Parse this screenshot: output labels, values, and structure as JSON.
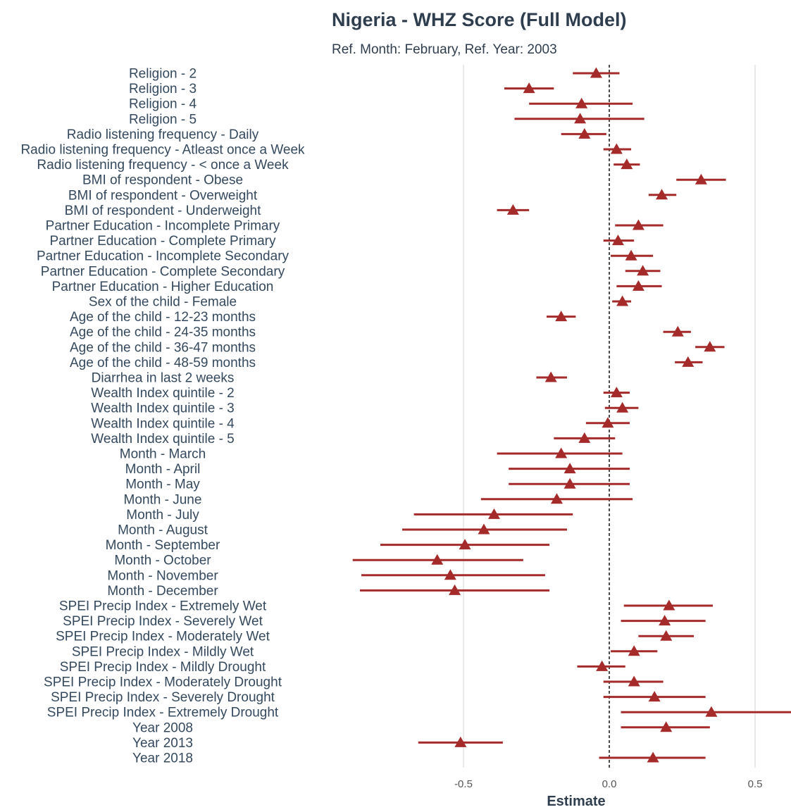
{
  "colors": {
    "series": "#a52a2a",
    "text": "#34495e",
    "grid": "#e3e3e3",
    "reference_line": "#111111"
  },
  "chart_data": {
    "type": "forest",
    "title": "Nigeria - WHZ Score (Full Model)",
    "subtitle": "Ref. Month: February, Ref. Year: 2003",
    "xlabel": "Estimate",
    "ylabel": "",
    "xlim": [
      -0.96,
      0.6
    ],
    "xticks": [
      -0.5,
      0.0,
      0.5
    ],
    "xtick_labels": [
      "-0.5",
      "0.0",
      "0.5"
    ],
    "reference_line": 0,
    "grid": "vertical major",
    "marker": "triangle",
    "rows": [
      {
        "label": "Religion - 2",
        "estimate": -0.045,
        "low": -0.125,
        "high": 0.035
      },
      {
        "label": "Religion - 3",
        "estimate": -0.275,
        "low": -0.36,
        "high": -0.19
      },
      {
        "label": "Religion - 4",
        "estimate": -0.095,
        "low": -0.275,
        "high": 0.08
      },
      {
        "label": "Religion - 5",
        "estimate": -0.1,
        "low": -0.325,
        "high": 0.12
      },
      {
        "label": "Radio listening frequency - Daily",
        "estimate": -0.085,
        "low": -0.165,
        "high": -0.01
      },
      {
        "label": "Radio listening frequency - Atleast once a Week",
        "estimate": 0.025,
        "low": -0.02,
        "high": 0.075
      },
      {
        "label": "Radio listening frequency - < once a Week",
        "estimate": 0.06,
        "low": 0.015,
        "high": 0.105
      },
      {
        "label": "BMI of respondent - Obese",
        "estimate": 0.315,
        "low": 0.23,
        "high": 0.4
      },
      {
        "label": "BMI of respondent - Overweight",
        "estimate": 0.18,
        "low": 0.135,
        "high": 0.23
      },
      {
        "label": "BMI of respondent - Underweight",
        "estimate": -0.33,
        "low": -0.385,
        "high": -0.275
      },
      {
        "label": "Partner Education - Incomplete Primary",
        "estimate": 0.1,
        "low": 0.02,
        "high": 0.185
      },
      {
        "label": "Partner Education - Complete Primary",
        "estimate": 0.03,
        "low": -0.02,
        "high": 0.085
      },
      {
        "label": "Partner Education - Incomplete Secondary",
        "estimate": 0.075,
        "low": 0.005,
        "high": 0.15
      },
      {
        "label": "Partner Education - Complete Secondary",
        "estimate": 0.115,
        "low": 0.055,
        "high": 0.175
      },
      {
        "label": "Partner Education - Higher Education",
        "estimate": 0.1,
        "low": 0.025,
        "high": 0.18
      },
      {
        "label": "Sex of the child - Female",
        "estimate": 0.045,
        "low": 0.01,
        "high": 0.075
      },
      {
        "label": "Age of the child - 12-23 months",
        "estimate": -0.165,
        "low": -0.215,
        "high": -0.115
      },
      {
        "label": "Age of the child - 24-35 months",
        "estimate": 0.235,
        "low": 0.185,
        "high": 0.28
      },
      {
        "label": "Age of the child - 36-47 months",
        "estimate": 0.345,
        "low": 0.295,
        "high": 0.395
      },
      {
        "label": "Age of the child - 48-59 months",
        "estimate": 0.27,
        "low": 0.225,
        "high": 0.32
      },
      {
        "label": "Diarrhea in last 2 weeks",
        "estimate": -0.2,
        "low": -0.25,
        "high": -0.145
      },
      {
        "label": "Wealth Index quintile - 2",
        "estimate": 0.025,
        "low": -0.02,
        "high": 0.07
      },
      {
        "label": "Wealth Index quintile - 3",
        "estimate": 0.045,
        "low": -0.015,
        "high": 0.1
      },
      {
        "label": "Wealth Index quintile - 4",
        "estimate": -0.005,
        "low": -0.08,
        "high": 0.07
      },
      {
        "label": "Wealth Index quintile - 5",
        "estimate": -0.085,
        "low": -0.19,
        "high": 0.02
      },
      {
        "label": "Month - March",
        "estimate": -0.165,
        "low": -0.385,
        "high": 0.045
      },
      {
        "label": "Month - April",
        "estimate": -0.135,
        "low": -0.345,
        "high": 0.07
      },
      {
        "label": "Month - May",
        "estimate": -0.135,
        "low": -0.345,
        "high": 0.07
      },
      {
        "label": "Month - June",
        "estimate": -0.18,
        "low": -0.44,
        "high": 0.08
      },
      {
        "label": "Month - July",
        "estimate": -0.395,
        "low": -0.67,
        "high": -0.125
      },
      {
        "label": "Month - August",
        "estimate": -0.43,
        "low": -0.71,
        "high": -0.145
      },
      {
        "label": "Month - September",
        "estimate": -0.495,
        "low": -0.785,
        "high": -0.205
      },
      {
        "label": "Month - October",
        "estimate": -0.59,
        "low": -0.88,
        "high": -0.295
      },
      {
        "label": "Month - November",
        "estimate": -0.545,
        "low": -0.85,
        "high": -0.22
      },
      {
        "label": "Month - December",
        "estimate": -0.53,
        "low": -0.855,
        "high": -0.205
      },
      {
        "label": "SPEI Precip Index - Extremely Wet",
        "estimate": 0.205,
        "low": 0.05,
        "high": 0.355
      },
      {
        "label": "SPEI Precip Index - Severely Wet",
        "estimate": 0.19,
        "low": 0.04,
        "high": 0.33
      },
      {
        "label": "SPEI Precip Index - Moderately Wet",
        "estimate": 0.195,
        "low": 0.1,
        "high": 0.29
      },
      {
        "label": "SPEI Precip Index - Mildly Wet",
        "estimate": 0.085,
        "low": 0.005,
        "high": 0.165
      },
      {
        "label": "SPEI Precip Index - Mildly Drought",
        "estimate": -0.025,
        "low": -0.11,
        "high": 0.055
      },
      {
        "label": "SPEI Precip Index - Moderately Drought",
        "estimate": 0.085,
        "low": -0.02,
        "high": 0.185
      },
      {
        "label": "SPEI Precip Index - Severely Drought",
        "estimate": 0.155,
        "low": -0.02,
        "high": 0.33
      },
      {
        "label": "SPEI Precip Index - Extremely Drought",
        "estimate": 0.35,
        "low": 0.04,
        "high": 0.65
      },
      {
        "label": "Year 2008",
        "estimate": 0.195,
        "low": 0.04,
        "high": 0.345
      },
      {
        "label": "Year 2013",
        "estimate": -0.51,
        "low": -0.655,
        "high": -0.365
      },
      {
        "label": "Year 2018",
        "estimate": 0.15,
        "low": -0.035,
        "high": 0.33
      }
    ]
  }
}
